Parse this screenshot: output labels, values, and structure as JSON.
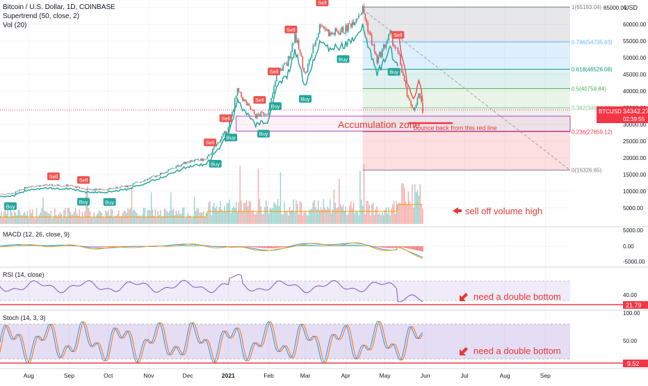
{
  "header": {
    "title": "Bitcoin / U.S. Dollar, 1D, COINBASE",
    "indicator_supertrend": "Supertrend (50, close, 2)",
    "indicator_vol": "Vol (20)"
  },
  "price_axis": {
    "currency": "USD",
    "ticks": [
      "65000.00",
      "60000.00",
      "55000.00",
      "50000.00",
      "45000.00",
      "40000.00",
      "35000.00",
      "30000.00",
      "25000.00",
      "20000.00",
      "15000.00",
      "10000.00",
      "5000.00"
    ],
    "current_symbol": "BTCUSD",
    "current_price": "34342.27",
    "countdown": "02:39:55"
  },
  "fib": {
    "levels": [
      {
        "ratio": 1,
        "label": "1(65193.04)",
        "price": 65193.04,
        "color": "#787b86"
      },
      {
        "ratio": 0.786,
        "label": "0.786(54735.63)",
        "price": 54735.63,
        "color": "#64b5f6"
      },
      {
        "ratio": 0.618,
        "label": "0.618(46526.08)",
        "price": 46526.08,
        "color": "#089981"
      },
      {
        "ratio": 0.5,
        "label": "0.5(40759.84)",
        "price": 40759.84,
        "color": "#4caf50"
      },
      {
        "ratio": 0.382,
        "label": "0.382(34993.61)",
        "price": 34993.61,
        "color": "#81c784"
      },
      {
        "ratio": 0.236,
        "label": "0.236(27859.12)",
        "price": 27859.12,
        "color": "#f23645"
      },
      {
        "ratio": 0,
        "label": "0(16326.65)",
        "price": 16326.65,
        "color": "#787b86"
      }
    ]
  },
  "annotations": {
    "accumulation": "Accumulation zone",
    "bounce": "bounce back from this red line",
    "sell_off": "sell off volume high",
    "rsi_note": "need a double bottom",
    "stoch_note": "need a double bottom"
  },
  "signals": [
    {
      "type": "Buy",
      "date": "2020-07-18"
    },
    {
      "type": "Sell",
      "date": "2020-08-20"
    },
    {
      "type": "Sell",
      "date": "2020-09-12"
    },
    {
      "type": "Buy",
      "date": "2020-09-12"
    },
    {
      "type": "Buy",
      "date": "2020-10-02"
    },
    {
      "type": "Sell",
      "date": "2020-12-18"
    },
    {
      "type": "Buy",
      "date": "2020-12-22"
    },
    {
      "type": "Sell",
      "date": "2020-12-30"
    },
    {
      "type": "Buy",
      "date": "2021-01-03"
    },
    {
      "type": "Sell",
      "date": "2021-01-25"
    },
    {
      "type": "Buy",
      "date": "2021-01-28"
    },
    {
      "type": "Sell",
      "date": "2021-02-05"
    },
    {
      "type": "Buy",
      "date": "2021-02-06"
    },
    {
      "type": "Sell",
      "date": "2021-02-18"
    },
    {
      "type": "Buy",
      "date": "2021-03-01"
    },
    {
      "type": "Sell",
      "date": "2021-03-14"
    },
    {
      "type": "Buy",
      "date": "2021-03-30"
    },
    {
      "type": "Sell",
      "date": "2021-04-14"
    },
    {
      "type": "Buy",
      "date": "2021-05-08"
    },
    {
      "type": "Sell",
      "date": "2021-05-11"
    }
  ],
  "macd": {
    "label": "MACD (12, 26, close, 9)",
    "ticks": [
      "5000.00",
      "0.00",
      "-5000.00"
    ]
  },
  "rsi": {
    "label": "RSI (14, close)",
    "tick": "40.00",
    "current": "21.79"
  },
  "stoch": {
    "label": "Stoch (14, 3, 3)",
    "ticks": [
      "100.00",
      "50.00"
    ],
    "current": "9.52"
  },
  "time_axis": {
    "labels": [
      {
        "text": "Aug",
        "date": "2020-08-01"
      },
      {
        "text": "Sep",
        "date": "2020-09-01"
      },
      {
        "text": "Oct",
        "date": "2020-10-01"
      },
      {
        "text": "Nov",
        "date": "2020-11-01"
      },
      {
        "text": "Dec",
        "date": "2020-12-01"
      },
      {
        "text": "2021",
        "date": "2021-01-01"
      },
      {
        "text": "Feb",
        "date": "2021-02-01"
      },
      {
        "text": "Mar",
        "date": "2021-03-01"
      },
      {
        "text": "Apr",
        "date": "2021-04-01"
      },
      {
        "text": "May",
        "date": "2021-05-01"
      },
      {
        "text": "Jun",
        "date": "2021-06-01"
      },
      {
        "text": "Jul",
        "date": "2021-07-01"
      },
      {
        "text": "Aug",
        "date": "2021-08-01"
      },
      {
        "text": "Sep",
        "date": "2021-09-01"
      }
    ]
  },
  "chart_data": {
    "type": "line",
    "x": [
      "2020-07-10",
      "2020-07-20",
      "2020-08-01",
      "2020-08-15",
      "2020-09-01",
      "2020-09-15",
      "2020-10-01",
      "2020-10-15",
      "2020-11-01",
      "2020-11-15",
      "2020-12-01",
      "2020-12-15",
      "2021-01-01",
      "2021-01-08",
      "2021-01-15",
      "2021-01-22",
      "2021-02-01",
      "2021-02-08",
      "2021-02-15",
      "2021-02-21",
      "2021-03-01",
      "2021-03-13",
      "2021-03-20",
      "2021-04-01",
      "2021-04-14",
      "2021-04-25",
      "2021-05-05",
      "2021-05-12",
      "2021-05-19",
      "2021-05-24",
      "2021-05-27",
      "2021-05-30"
    ],
    "series": [
      {
        "values": [
          9200,
          9300,
          11500,
          11800,
          11700,
          10500,
          10600,
          11500,
          13800,
          16000,
          19000,
          19500,
          29000,
          40000,
          36000,
          32500,
          34000,
          46000,
          48000,
          57000,
          45000,
          60500,
          57000,
          58500,
          64500,
          49000,
          57000,
          50000,
          37000,
          34500,
          39000,
          34342
        ]
      }
    ],
    "ylim": [
      0,
      66000
    ],
    "xlim": [
      "2020-07-10",
      "2021-09-20"
    ],
    "accumulation_zone": {
      "from": "2021-01-07",
      "to": "2021-09-20",
      "low": 28000,
      "high": 32500
    },
    "volume_peak_note": "sell off volume high",
    "grid": true
  }
}
